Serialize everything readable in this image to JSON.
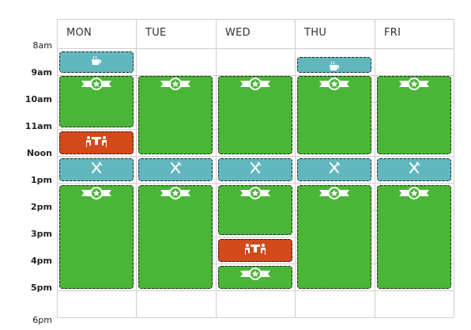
{
  "calendar": {
    "days": [
      "MON",
      "TUE",
      "WED",
      "THU",
      "FRI"
    ],
    "times": [
      "8am",
      "9am",
      "10am",
      "11am",
      "Noon",
      "1pm",
      "2pm",
      "3pm",
      "4pm",
      "5pm",
      "6pm"
    ],
    "bold_times": [
      "9am",
      "10am",
      "11am",
      "Noon",
      "1pm",
      "2pm",
      "3pm",
      "4pm",
      "5pm"
    ],
    "start_hour": 8,
    "colors": {
      "focus": "#4ab536",
      "meal": "#62b7bf",
      "meeting": "#d2491a",
      "grid": "#cfcfcf"
    },
    "events": [
      {
        "day": 0,
        "start": 8.1,
        "end": 8.9,
        "type": "meal",
        "icon": "coffee-icon"
      },
      {
        "day": 3,
        "start": 8.3,
        "end": 8.9,
        "type": "meal",
        "icon": "coffee-icon"
      },
      {
        "day": 0,
        "start": 9.0,
        "end": 10.9,
        "type": "focus",
        "icon": "star-banner-icon"
      },
      {
        "day": 1,
        "start": 9.0,
        "end": 11.9,
        "type": "focus",
        "icon": "star-banner-icon"
      },
      {
        "day": 2,
        "start": 9.0,
        "end": 11.9,
        "type": "focus",
        "icon": "star-banner-icon"
      },
      {
        "day": 3,
        "start": 9.0,
        "end": 11.9,
        "type": "focus",
        "icon": "star-banner-icon"
      },
      {
        "day": 4,
        "start": 9.0,
        "end": 11.9,
        "type": "focus",
        "icon": "star-banner-icon"
      },
      {
        "day": 0,
        "start": 11.05,
        "end": 11.9,
        "type": "meeting",
        "icon": "meeting-icon"
      },
      {
        "day": 0,
        "start": 12.05,
        "end": 12.9,
        "type": "meal",
        "icon": "utensils-icon"
      },
      {
        "day": 1,
        "start": 12.05,
        "end": 12.9,
        "type": "meal",
        "icon": "utensils-icon"
      },
      {
        "day": 2,
        "start": 12.05,
        "end": 12.9,
        "type": "meal",
        "icon": "utensils-icon"
      },
      {
        "day": 3,
        "start": 12.05,
        "end": 12.9,
        "type": "meal",
        "icon": "utensils-icon"
      },
      {
        "day": 4,
        "start": 12.05,
        "end": 12.9,
        "type": "meal",
        "icon": "utensils-icon"
      },
      {
        "day": 0,
        "start": 13.05,
        "end": 16.9,
        "type": "focus",
        "icon": "star-banner-icon"
      },
      {
        "day": 1,
        "start": 13.05,
        "end": 16.9,
        "type": "focus",
        "icon": "star-banner-icon"
      },
      {
        "day": 2,
        "start": 13.05,
        "end": 14.9,
        "type": "focus",
        "icon": "star-banner-icon"
      },
      {
        "day": 2,
        "start": 15.05,
        "end": 15.9,
        "type": "meeting",
        "icon": "meeting-icon"
      },
      {
        "day": 2,
        "start": 16.05,
        "end": 16.9,
        "type": "focus",
        "icon": "star-banner-icon"
      },
      {
        "day": 3,
        "start": 13.05,
        "end": 16.9,
        "type": "focus",
        "icon": "star-banner-icon"
      },
      {
        "day": 4,
        "start": 13.05,
        "end": 16.9,
        "type": "focus",
        "icon": "star-banner-icon"
      }
    ]
  }
}
